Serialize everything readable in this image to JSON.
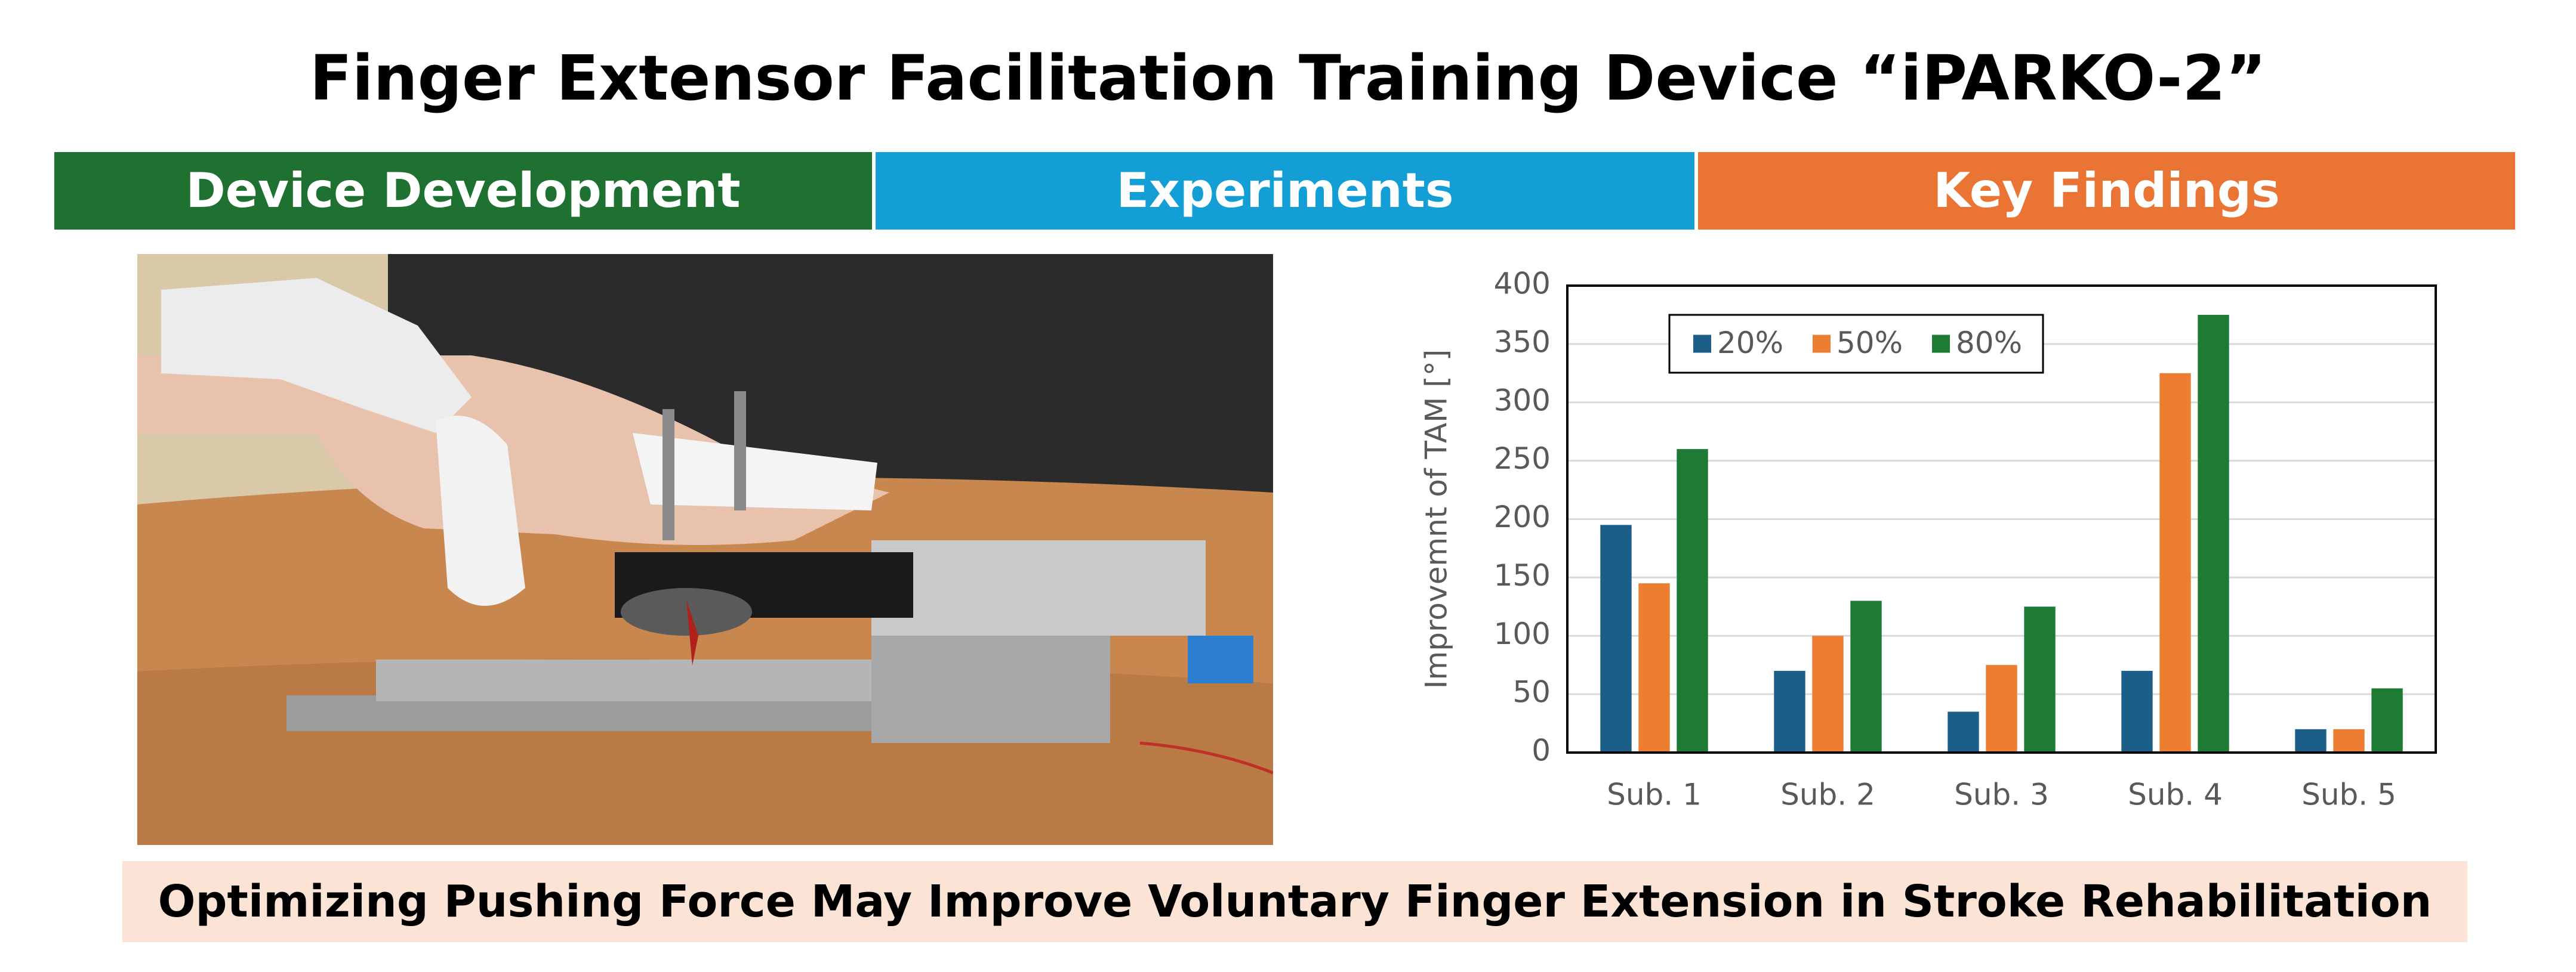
{
  "title": "Finger Extensor Facilitation Training Device “iPARKO-2”",
  "sections": [
    "Device Development",
    "Experiments",
    "Key Findings"
  ],
  "conclusion": "Optimizing Pushing Force May Improve Voluntary Finger Extension in Stroke Rehabilitation",
  "chart_data": {
    "type": "bar",
    "categories": [
      "Sub. 1",
      "Sub. 2",
      "Sub. 3",
      "Sub. 4",
      "Sub. 5"
    ],
    "series": [
      {
        "name": "20%",
        "color": "#1b5e88",
        "values": [
          195,
          70,
          35,
          70,
          20
        ]
      },
      {
        "name": "50%",
        "color": "#ed7d31",
        "values": [
          145,
          100,
          75,
          325,
          20
        ]
      },
      {
        "name": "80%",
        "color": "#1e7b34",
        "values": [
          260,
          130,
          125,
          375,
          55
        ]
      }
    ],
    "y_label": "Improvemnt of TAM [°]",
    "ylim": [
      0,
      400
    ],
    "yticks": [
      0,
      50,
      100,
      150,
      200,
      250,
      300,
      350,
      400
    ],
    "grid": true,
    "legend": "upper left"
  }
}
